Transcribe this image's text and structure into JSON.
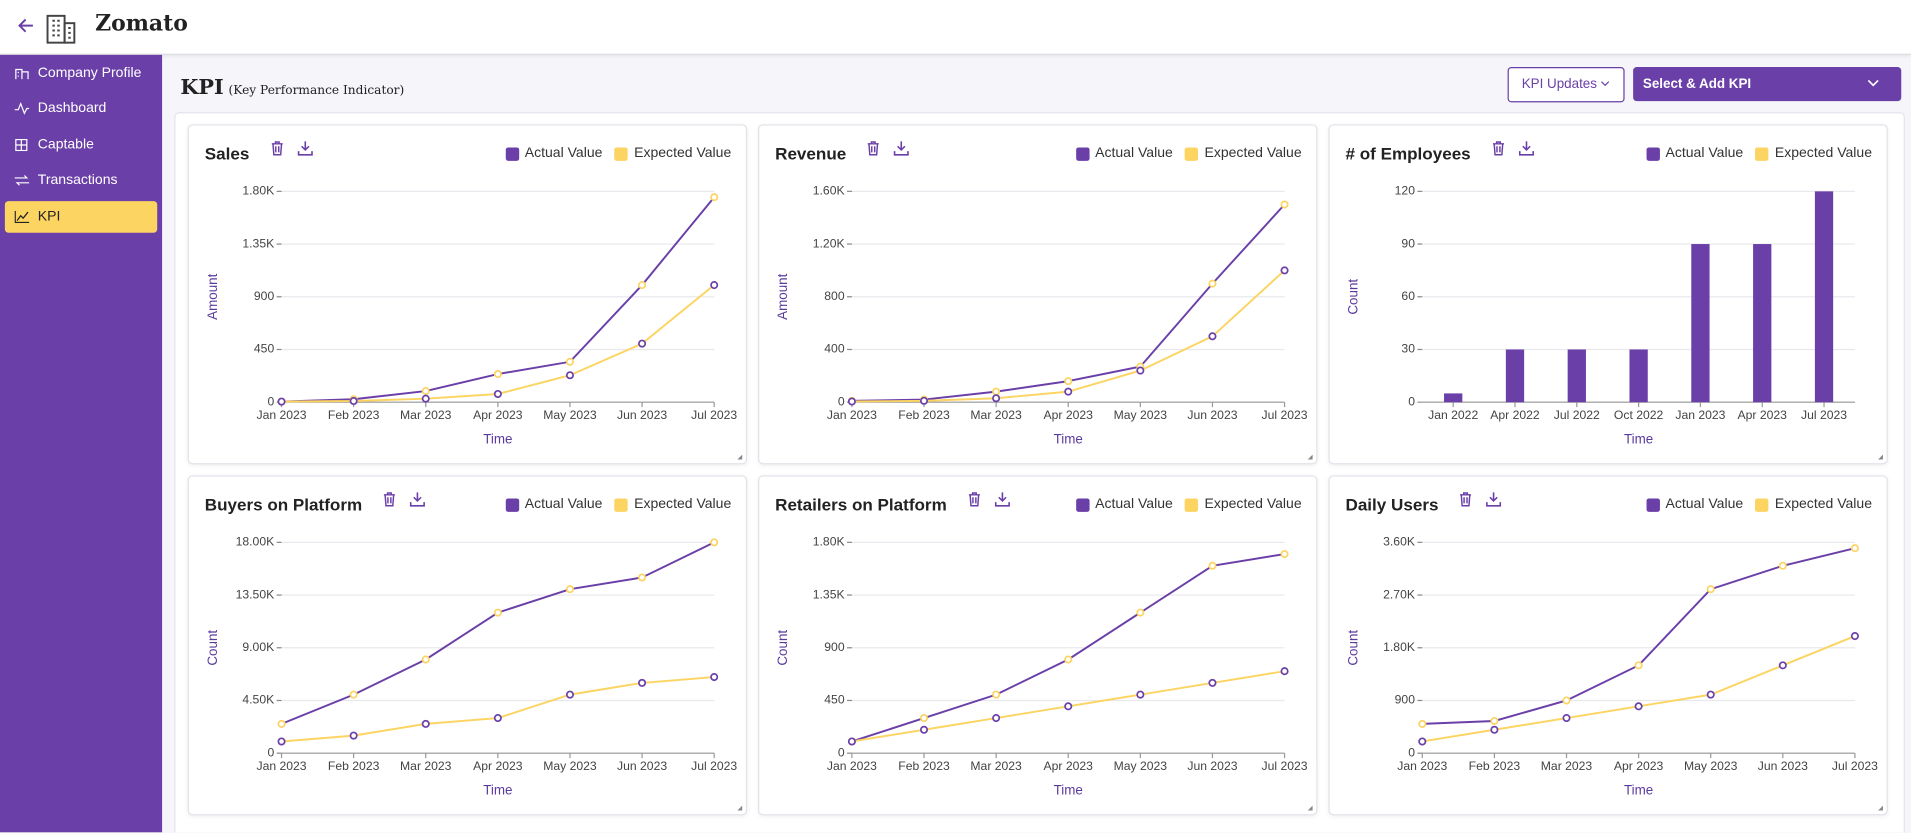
{
  "header": {
    "title": "Zomato"
  },
  "sidebar": {
    "items": [
      "Company Profile",
      "Dashboard",
      "Captable",
      "Transactions",
      "KPI"
    ],
    "active_index": 4
  },
  "page": {
    "title": "KPI",
    "subtitle": "(Key Performance Indicator)",
    "buttons": [
      "KPI Updates",
      "Select & Add KPI"
    ]
  },
  "chart_data": [
    {
      "type": "line",
      "title": "Sales",
      "x_label": "Time",
      "y_label": "Amount",
      "categories": [
        "Jan 2023",
        "Feb 2023",
        "Mar 2023",
        "Apr 2023",
        "May 2023",
        "Jun 2023",
        "Jul 2023"
      ],
      "series": [
        {
          "name": "Actual Value",
          "color": "#6a3fa8",
          "marker_color": "#fcd462",
          "values": [
            5,
            25,
            95,
            240,
            345,
            1000,
            1750
          ]
        },
        {
          "name": "Expected Value",
          "color": "#fcd462",
          "marker_color": "#6a3fa8",
          "values": [
            5,
            10,
            30,
            70,
            230,
            500,
            1000
          ]
        }
      ],
      "ylim": [
        0,
        1800
      ],
      "yticks": [
        0,
        450,
        900,
        {
          "value": 1350,
          "label": "1.35K"
        },
        {
          "value": 1800,
          "label": "1.80K"
        }
      ],
      "grid": true
    },
    {
      "type": "line",
      "title": "Revenue",
      "x_label": "Time",
      "y_label": "Amount",
      "categories": [
        "Jan 2023",
        "Feb 2023",
        "Mar 2023",
        "Apr 2023",
        "May 2023",
        "Jun 2023",
        "Jul 2023"
      ],
      "series": [
        {
          "name": "Actual Value",
          "color": "#6a3fa8",
          "marker_color": "#fcd462",
          "values": [
            10,
            20,
            80,
            160,
            270,
            900,
            1500
          ]
        },
        {
          "name": "Expected Value",
          "color": "#fcd462",
          "marker_color": "#6a3fa8",
          "values": [
            5,
            10,
            30,
            80,
            240,
            500,
            1000
          ]
        }
      ],
      "ylim": [
        0,
        1600
      ],
      "yticks": [
        0,
        400,
        800,
        {
          "value": 1200,
          "label": "1.20K"
        },
        {
          "value": 1600,
          "label": "1.60K"
        }
      ],
      "grid": true
    },
    {
      "type": "bar",
      "title": "# of Employees",
      "x_label": "Time",
      "y_label": "Count",
      "categories": [
        "Jan 2022",
        "Apr 2022",
        "Jul 2022",
        "Oct 2022",
        "Jan 2023",
        "Apr 2023",
        "Jul 2023"
      ],
      "series": [
        {
          "name": "Actual Value",
          "color": "#6a3fa8",
          "values": [
            5,
            30,
            30,
            30,
            90,
            90,
            120
          ]
        },
        {
          "name": "Expected Value",
          "color": "#fcd462",
          "values": [
            null,
            null,
            null,
            null,
            null,
            null,
            null
          ]
        }
      ],
      "ylim": [
        0,
        120
      ],
      "yticks": [
        0,
        30,
        60,
        90,
        120
      ],
      "grid": true
    },
    {
      "type": "line",
      "title": "Buyers on Platform",
      "x_label": "Time",
      "y_label": "Count",
      "categories": [
        "Jan 2023",
        "Feb 2023",
        "Mar 2023",
        "Apr 2023",
        "May 2023",
        "Jun 2023",
        "Jul 2023"
      ],
      "series": [
        {
          "name": "Actual Value",
          "color": "#6a3fa8",
          "marker_color": "#fcd462",
          "values": [
            2500,
            5000,
            8000,
            12000,
            14000,
            15000,
            18000
          ]
        },
        {
          "name": "Expected Value",
          "color": "#fcd462",
          "marker_color": "#6a3fa8",
          "values": [
            1000,
            1500,
            2500,
            3000,
            5000,
            6000,
            6500
          ]
        }
      ],
      "ylim": [
        0,
        18000
      ],
      "yticks": [
        0,
        {
          "value": 4500,
          "label": "4.50K"
        },
        {
          "value": 9000,
          "label": "9.00K"
        },
        {
          "value": 13500,
          "label": "13.50K"
        },
        {
          "value": 18000,
          "label": "18.00K"
        }
      ],
      "grid": true
    },
    {
      "type": "line",
      "title": "Retailers on Platform",
      "x_label": "Time",
      "y_label": "Count",
      "categories": [
        "Jan 2023",
        "Feb 2023",
        "Mar 2023",
        "Apr 2023",
        "May 2023",
        "Jun 2023",
        "Jul 2023"
      ],
      "series": [
        {
          "name": "Actual Value",
          "color": "#6a3fa8",
          "marker_color": "#fcd462",
          "values": [
            100,
            300,
            500,
            800,
            1200,
            1600,
            1700
          ]
        },
        {
          "name": "Expected Value",
          "color": "#fcd462",
          "marker_color": "#6a3fa8",
          "values": [
            100,
            200,
            300,
            400,
            500,
            600,
            700
          ]
        }
      ],
      "ylim": [
        0,
        1800
      ],
      "yticks": [
        0,
        450,
        900,
        {
          "value": 1350,
          "label": "1.35K"
        },
        {
          "value": 1800,
          "label": "1.80K"
        }
      ],
      "grid": true
    },
    {
      "type": "line",
      "title": "Daily Users",
      "x_label": "Time",
      "y_label": "Count",
      "categories": [
        "Jan 2023",
        "Feb 2023",
        "Mar 2023",
        "Apr 2023",
        "May 2023",
        "Jun 2023",
        "Jul 2023"
      ],
      "series": [
        {
          "name": "Actual Value",
          "color": "#6a3fa8",
          "marker_color": "#fcd462",
          "values": [
            500,
            550,
            900,
            1500,
            2800,
            3200,
            3500
          ]
        },
        {
          "name": "Expected Value",
          "color": "#fcd462",
          "marker_color": "#6a3fa8",
          "values": [
            200,
            400,
            600,
            800,
            1000,
            1500,
            2000
          ]
        }
      ],
      "ylim": [
        0,
        3600
      ],
      "yticks": [
        0,
        900,
        {
          "value": 1800,
          "label": "1.80K"
        },
        {
          "value": 2700,
          "label": "2.70K"
        },
        {
          "value": 3600,
          "label": "3.60K"
        }
      ],
      "grid": true
    }
  ]
}
